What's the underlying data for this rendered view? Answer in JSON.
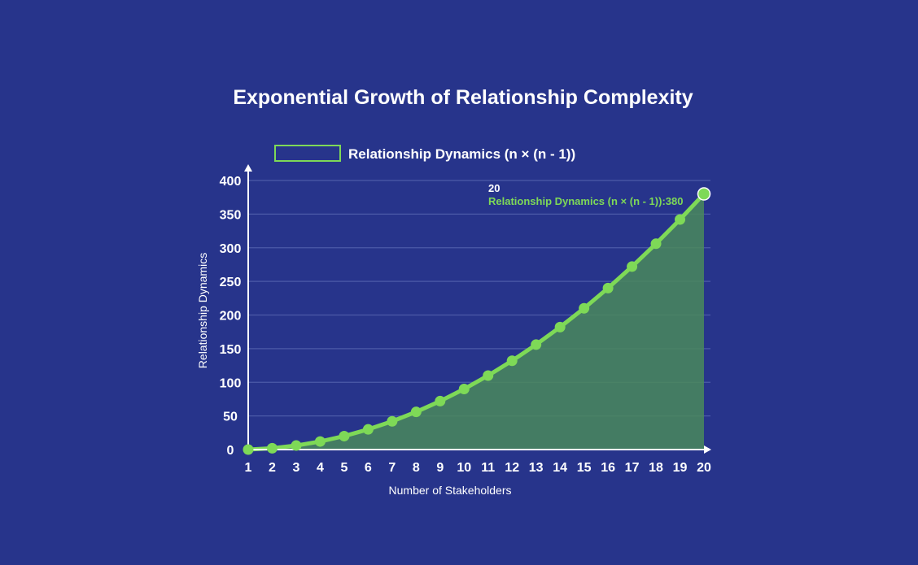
{
  "chart_data": {
    "type": "area",
    "title": "Exponential Growth of Relationship Complexity",
    "xlabel": "Number of Stakeholders",
    "ylabel": "Relationship Dynamics",
    "categories": [
      "1",
      "2",
      "3",
      "4",
      "5",
      "6",
      "7",
      "8",
      "9",
      "10",
      "11",
      "12",
      "13",
      "14",
      "15",
      "16",
      "17",
      "18",
      "19",
      "20"
    ],
    "series": [
      {
        "name": "Relationship Dynamics (n × (n - 1))",
        "values": [
          0,
          2,
          6,
          12,
          20,
          30,
          42,
          56,
          72,
          90,
          110,
          132,
          156,
          182,
          210,
          240,
          272,
          306,
          342,
          380
        ],
        "color": "#7ed957",
        "fill": "#4a8a5c"
      }
    ],
    "ylim": [
      0,
      400
    ],
    "yticks": [
      "0",
      "50",
      "100",
      "150",
      "200",
      "250",
      "300",
      "350",
      "400"
    ],
    "legend_position": "top-left",
    "grid": true,
    "tooltip": {
      "x_label": "20",
      "value_label": "Relationship Dynamics (n × (n - 1)):380"
    }
  },
  "colors": {
    "background": "#27348b",
    "gridline": "#4c5aa8",
    "axis": "#ffffff"
  }
}
